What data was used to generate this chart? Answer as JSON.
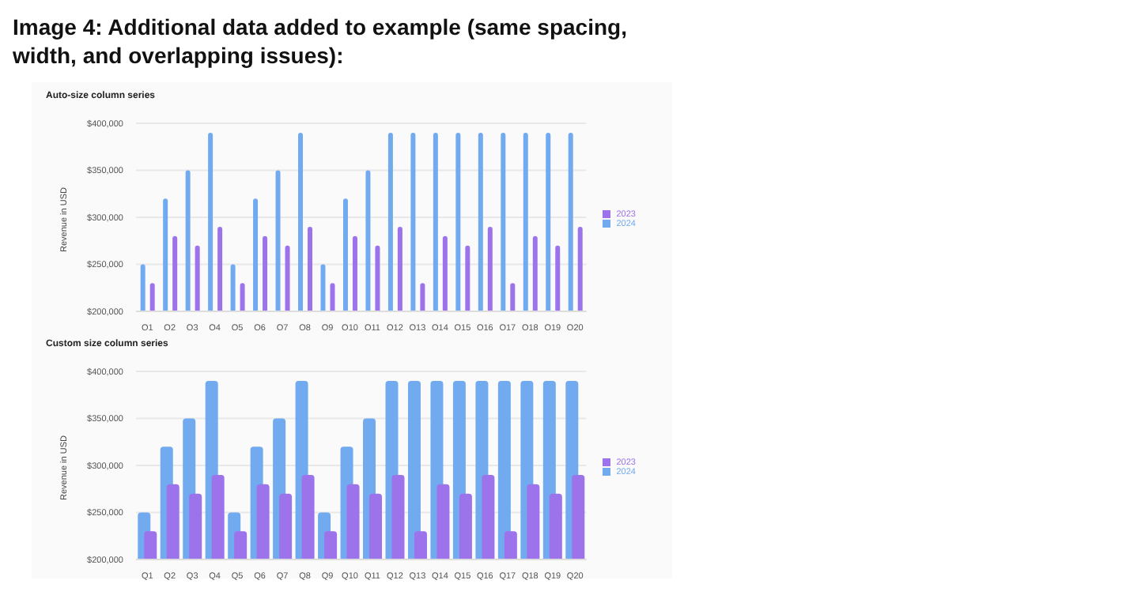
{
  "chart_data": [
    {
      "type": "bar",
      "title": "Auto-size column series",
      "ylabel": "Revenue in USD",
      "annotations": [
        "Image 4: Additional data added to example (same spacing, width, and overlapping issues):"
      ],
      "categories": [
        "Q1",
        "Q2",
        "Q3",
        "Q4",
        "Q5",
        "Q6",
        "Q7",
        "Q8",
        "Q9",
        "Q10",
        "Q11",
        "Q12",
        "Q13",
        "Q14",
        "Q15",
        "Q16",
        "Q17",
        "Q18",
        "Q19",
        "Q20"
      ],
      "series": [
        {
          "name": "2024",
          "color": "#72aaf0",
          "values": [
            250000,
            320000,
            350000,
            390000,
            250000,
            320000,
            350000,
            390000,
            250000,
            320000,
            350000,
            390000,
            390000,
            390000,
            390000,
            390000,
            390000,
            390000,
            390000,
            390000
          ]
        },
        {
          "name": "2023",
          "color": "#9c73ea",
          "values": [
            230000,
            280000,
            270000,
            290000,
            230000,
            280000,
            270000,
            290000,
            230000,
            280000,
            270000,
            290000,
            230000,
            280000,
            270000,
            290000,
            230000,
            280000,
            270000,
            290000
          ]
        }
      ],
      "ylim": [
        200000,
        400000
      ],
      "yticks": [
        {
          "value": 200000,
          "label": "$200,000"
        },
        {
          "value": 250000,
          "label": "$250,000"
        },
        {
          "value": 300000,
          "label": "$300,000"
        },
        {
          "value": 350000,
          "label": "$350,000"
        },
        {
          "value": 400000,
          "label": "$400,000"
        }
      ],
      "grid": "y",
      "legend": "right"
    },
    {
      "type": "bar",
      "title": "Custom size column series",
      "ylabel": "Revenue in USD",
      "categories": [
        "Q1",
        "Q2",
        "Q3",
        "Q4",
        "Q5",
        "Q6",
        "Q7",
        "Q8",
        "Q9",
        "Q10",
        "Q11",
        "Q12",
        "Q13",
        "Q14",
        "Q15",
        "Q16",
        "Q17",
        "Q18",
        "Q19",
        "Q20"
      ],
      "series": [
        {
          "name": "2024",
          "color": "#72aaf0",
          "values": [
            250000,
            320000,
            350000,
            390000,
            250000,
            320000,
            350000,
            390000,
            250000,
            320000,
            350000,
            390000,
            390000,
            390000,
            390000,
            390000,
            390000,
            390000,
            390000,
            390000
          ]
        },
        {
          "name": "2023",
          "color": "#9c73ea",
          "values": [
            230000,
            280000,
            270000,
            290000,
            230000,
            280000,
            270000,
            290000,
            230000,
            280000,
            270000,
            290000,
            230000,
            280000,
            270000,
            290000,
            230000,
            280000,
            270000,
            290000
          ]
        }
      ],
      "ylim": [
        200000,
        400000
      ],
      "yticks": [
        {
          "value": 200000,
          "label": "$200,000"
        },
        {
          "value": 250000,
          "label": "$250,000"
        },
        {
          "value": 300000,
          "label": "$300,000"
        },
        {
          "value": 350000,
          "label": "$350,000"
        },
        {
          "value": 400000,
          "label": "$400,000"
        }
      ],
      "grid": "y",
      "legend": "right"
    }
  ]
}
